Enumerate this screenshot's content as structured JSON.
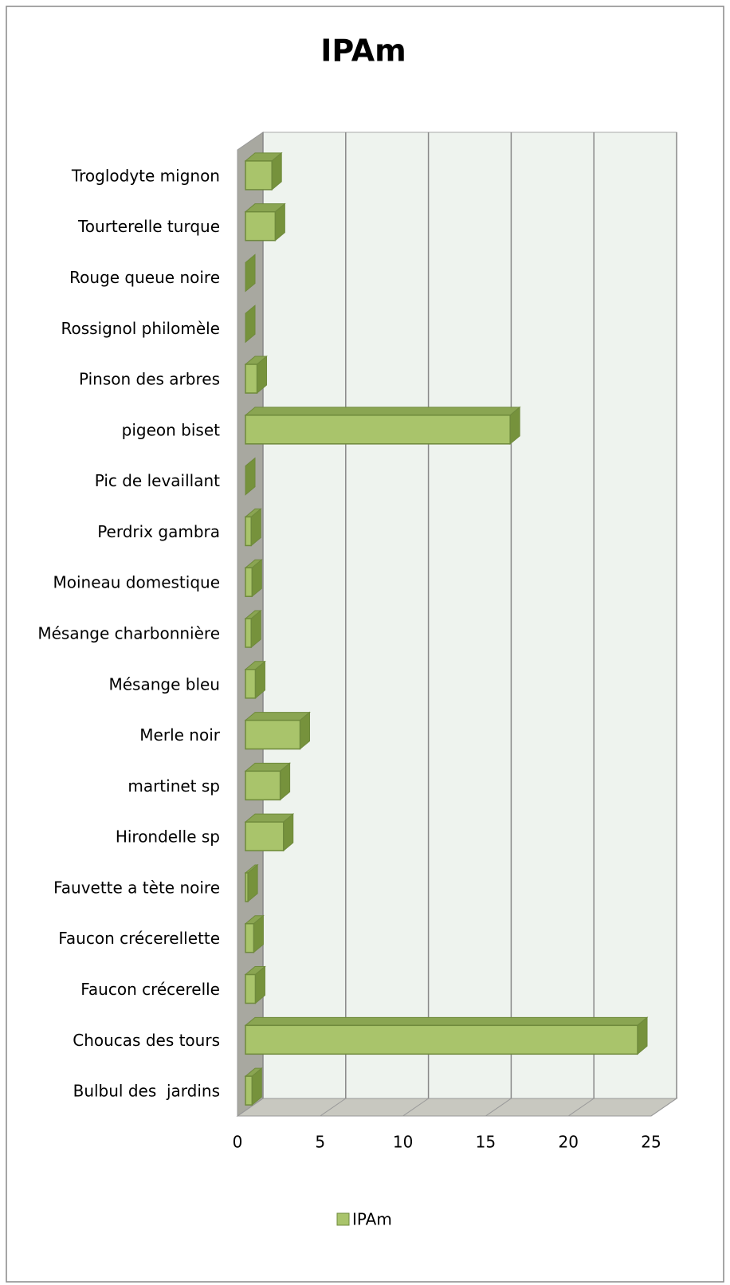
{
  "chart_data": {
    "type": "bar3d_horizontal",
    "title": "IPAm",
    "categories": [
      "Bulbul des  jardins",
      "Choucas des tours",
      "Faucon crécerelle",
      "Faucon crécerellette",
      "Fauvette a tète noire",
      "Hirondelle sp",
      "martinet sp",
      "Merle noir",
      "Mésange bleu",
      "Mésange charbonnière",
      "Moineau domestique",
      "Perdrix gambra",
      "Pic de levaillant",
      "pigeon biset",
      "Pinson des arbres",
      "Rossignol philomèle",
      "Rouge queue noire",
      "Tourterelle turque",
      "Troglodyte mignon"
    ],
    "series": [
      {
        "name": "IPAm",
        "color": "#a9c46b",
        "values": [
          0.4,
          23.7,
          0.6,
          0.5,
          0.15,
          2.3,
          2.1,
          3.3,
          0.6,
          0.35,
          0.4,
          0.35,
          0,
          16.0,
          0.7,
          0,
          0,
          1.8,
          1.6
        ]
      }
    ],
    "xlim": [
      0,
      25
    ],
    "xticks": [
      0,
      5,
      10,
      15,
      20,
      25
    ],
    "grid": true,
    "legend": "bottom"
  }
}
